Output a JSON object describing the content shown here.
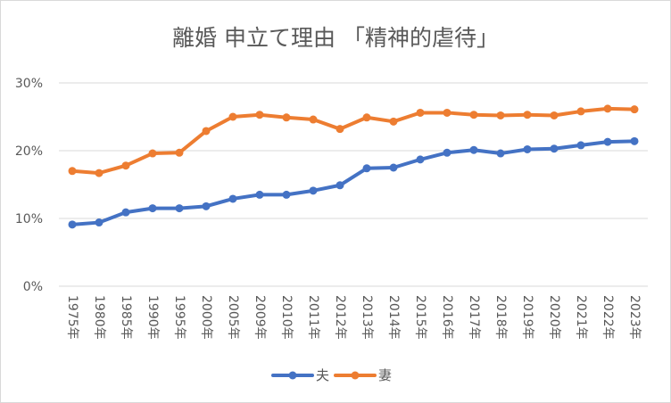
{
  "chart_data": {
    "type": "line",
    "title": "離婚 申立て理由 「精神的虐待」",
    "xlabel": "",
    "ylabel": "",
    "categories": [
      "1975年",
      "1980年",
      "1985年",
      "1990年",
      "1995年",
      "2000年",
      "2005年",
      "2009年",
      "2010年",
      "2011年",
      "2012年",
      "2013年",
      "2014年",
      "2015年",
      "2016年",
      "2017年",
      "2018年",
      "2019年",
      "2020年",
      "2021年",
      "2022年",
      "2023年"
    ],
    "yticks": [
      "0%",
      "10%",
      "20%",
      "30%"
    ],
    "ylim": [
      0,
      0.3
    ],
    "grid": true,
    "legend_position": "bottom",
    "series": [
      {
        "name": "夫",
        "color": "#4472c4",
        "values": [
          0.091,
          0.094,
          0.109,
          0.115,
          0.115,
          0.118,
          0.129,
          0.135,
          0.135,
          0.141,
          0.149,
          0.174,
          0.175,
          0.187,
          0.197,
          0.201,
          0.196,
          0.202,
          0.203,
          0.208,
          0.213,
          0.214
        ]
      },
      {
        "name": "妻",
        "color": "#ed7d31",
        "values": [
          0.17,
          0.167,
          0.178,
          0.196,
          0.197,
          0.229,
          0.25,
          0.253,
          0.249,
          0.246,
          0.232,
          0.249,
          0.243,
          0.256,
          0.256,
          0.253,
          0.252,
          0.253,
          0.252,
          0.258,
          0.262,
          0.261
        ]
      }
    ]
  }
}
